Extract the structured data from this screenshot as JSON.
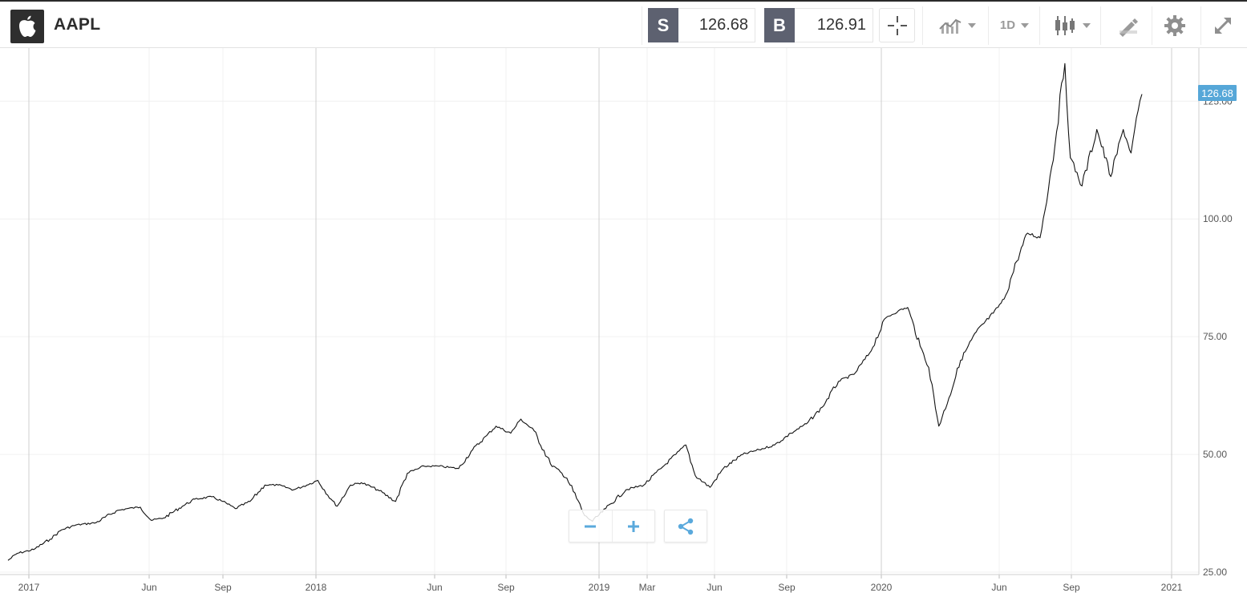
{
  "instrument": {
    "symbol": "AAPL",
    "logo_icon": "apple-logo-icon"
  },
  "quote": {
    "sell_label": "S",
    "sell_price": "126.68",
    "buy_label": "B",
    "buy_price": "126.91"
  },
  "toolbar": {
    "crosshair_icon": "crosshair-icon",
    "chart_type_icon": "line-chart-icon",
    "interval_label": "1D",
    "candles_icon": "candlestick-icon",
    "draw_icon": "drawing-pencil-icon",
    "settings_icon": "gear-icon",
    "fullscreen_icon": "expand-icon"
  },
  "colors": {
    "line": "#111111",
    "accent": "#56a7d8",
    "badge": "#5d6170"
  },
  "chart_data": {
    "type": "line",
    "title": "",
    "ylim": [
      25,
      135
    ],
    "y_ticks": [
      "125.00",
      "100.00",
      "75.00",
      "50.00",
      "25.00"
    ],
    "x_ticks": [
      "2017",
      "Jun",
      "Sep",
      "2018",
      "Jun",
      "Sep",
      "2019",
      "Mar",
      "Jun",
      "Sep",
      "2020",
      "Jun",
      "Sep",
      "2021"
    ],
    "current_price": "126.68",
    "grid": true,
    "series": [
      {
        "x": [
          "2016-12-13",
          "2016-12-25",
          "2017-01-15",
          "2017-02-05",
          "2017-02-20",
          "2017-03-10",
          "2017-04-05",
          "2017-05-01",
          "2017-05-15",
          "2017-06-01",
          "2017-06-15",
          "2017-07-01",
          "2017-07-25",
          "2017-08-10",
          "2017-09-01",
          "2017-09-15",
          "2017-10-01",
          "2017-10-20",
          "2017-11-08",
          "2017-11-25",
          "2017-12-15",
          "2018-01-01",
          "2018-01-15",
          "2018-02-01",
          "2018-02-09",
          "2018-02-26",
          "2018-03-12",
          "2018-04-02",
          "2018-04-25",
          "2018-05-10",
          "2018-06-01",
          "2018-06-20",
          "2018-07-15",
          "2018-08-02",
          "2018-08-20",
          "2018-09-01",
          "2018-09-20",
          "2018-10-03",
          "2018-10-20",
          "2018-11-10",
          "2018-12-01",
          "2018-12-24",
          "2019-01-03",
          "2019-01-20",
          "2019-02-15",
          "2019-03-10",
          "2019-04-01",
          "2019-04-20",
          "2019-05-03",
          "2019-05-15",
          "2019-06-03",
          "2019-06-20",
          "2019-07-15",
          "2019-08-05",
          "2019-08-25",
          "2019-09-15",
          "2019-10-05",
          "2019-10-25",
          "2019-11-15",
          "2019-12-05",
          "2019-12-25",
          "2020-01-15",
          "2020-01-31",
          "2020-02-12",
          "2020-02-28",
          "2020-03-10",
          "2020-03-23",
          "2020-04-05",
          "2020-04-20",
          "2020-05-10",
          "2020-06-01",
          "2020-06-15",
          "2020-07-01",
          "2020-07-15",
          "2020-07-31",
          "2020-08-15",
          "2020-09-01",
          "2020-09-08",
          "2020-09-23",
          "2020-10-12",
          "2020-10-30",
          "2020-11-15",
          "2020-11-25",
          "2020-12-04",
          "2020-12-09"
        ],
        "y": [
          27.5,
          29,
          29.8,
          32,
          34,
          35,
          35.5,
          38,
          38.5,
          38.8,
          36,
          36.5,
          39,
          40.5,
          41,
          40,
          38.5,
          40,
          43.5,
          43.5,
          42.5,
          43.5,
          44.5,
          40.5,
          39,
          43.5,
          44,
          42.5,
          40,
          46,
          47.5,
          47.5,
          47,
          51,
          54,
          56,
          54.5,
          57.5,
          55,
          48,
          45,
          37,
          35.8,
          38.5,
          42.5,
          43.5,
          47,
          50,
          52,
          45.5,
          43,
          47,
          50,
          51,
          52,
          54.5,
          56.5,
          60,
          65.5,
          67,
          71.5,
          79,
          80.5,
          81.2,
          73,
          68.5,
          56,
          62,
          70,
          76,
          80,
          83,
          91,
          97,
          96,
          111,
          133,
          113,
          107,
          119,
          109,
          119,
          114,
          123,
          126.5
        ]
      }
    ]
  }
}
